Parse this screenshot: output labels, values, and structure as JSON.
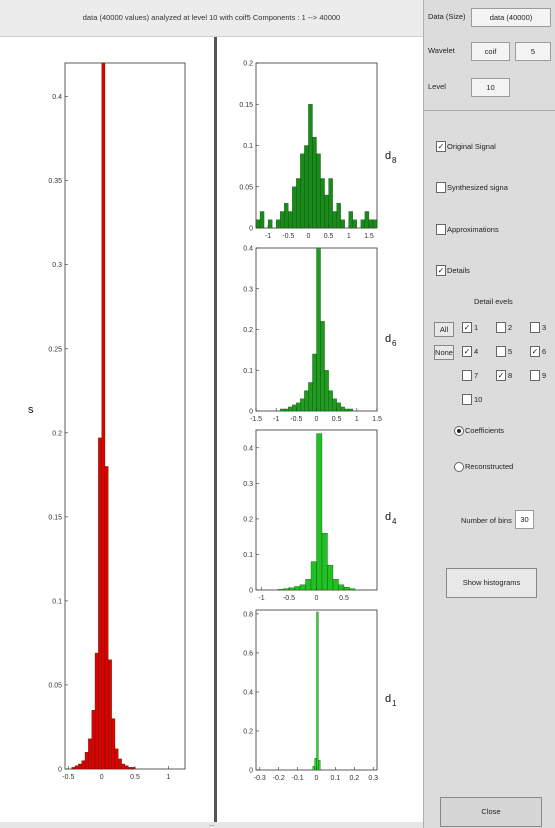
{
  "window": {
    "title": "data (40000 values) analyzed at level 10 with coif5  Components : 1 --> 40000",
    "footer": "...."
  },
  "controls": {
    "data_label": "Data (Size)",
    "data_value": "data (40000)",
    "wavelet_label": "Wavelet",
    "wavelet_family": "coif",
    "wavelet_order": "5",
    "level_label": "Level",
    "level_value": "10",
    "original_signal": "Original Signal",
    "synthesized_signal": "Synthesized signa",
    "approximations": "Approximations",
    "details": "Details",
    "detail_levels_title": "Detail evels",
    "all_button": "All",
    "none_button": "None",
    "levels": [
      {
        "label": "1",
        "checked": true
      },
      {
        "label": "2",
        "checked": false
      },
      {
        "label": "3",
        "checked": false
      },
      {
        "label": "4",
        "checked": true
      },
      {
        "label": "5",
        "checked": false
      },
      {
        "label": "6",
        "checked": true
      },
      {
        "label": "7",
        "checked": false
      },
      {
        "label": "8",
        "checked": true
      },
      {
        "label": "9",
        "checked": false
      },
      {
        "label": "10",
        "checked": false
      }
    ],
    "coefficients": "Coefficients",
    "reconstructed": "Reconstructed",
    "bins_label": "Number of bins",
    "bins_value": "30",
    "show_button": "Show histograms",
    "close_button": "Close",
    "check_mark": "✓"
  },
  "chart_data": [
    {
      "type": "bar",
      "ylabel": "s",
      "color": "#e00000",
      "xlim": [
        -0.55,
        1.25
      ],
      "ylim": [
        0,
        0.42
      ],
      "xticks": [
        "-0.5",
        "0",
        "0.5",
        "1"
      ],
      "yticks": [
        "0",
        "0.05",
        "0.1",
        "0.15",
        "0.2",
        "0.25",
        "0.3",
        "0.35",
        "0.4"
      ],
      "bins_x": [
        -0.45,
        -0.4,
        -0.35,
        -0.3,
        -0.25,
        -0.2,
        -0.15,
        -0.1,
        -0.05,
        0.0,
        0.05,
        0.1,
        0.15,
        0.2,
        0.25,
        0.3,
        0.35,
        0.4,
        0.45,
        0.5
      ],
      "values": [
        0.001,
        0.002,
        0.003,
        0.005,
        0.01,
        0.018,
        0.035,
        0.069,
        0.197,
        0.42,
        0.18,
        0.065,
        0.03,
        0.012,
        0.006,
        0.003,
        0.002,
        0.001,
        0.001,
        0.0
      ],
      "ytick_values": [
        0,
        0.05,
        0.1,
        0.15,
        0.2,
        0.25,
        0.3,
        0.35,
        0.4
      ],
      "xtick_values": [
        -0.5,
        0,
        0.5,
        1
      ]
    },
    {
      "type": "bar",
      "label_main": "d",
      "label_sub": "8",
      "color": "#1a8a1a",
      "xlim": [
        -1.3,
        1.7
      ],
      "ylim": [
        0,
        0.2
      ],
      "xticks": [
        "-1",
        "-0.5",
        "0",
        "0.5",
        "1",
        "1.5"
      ],
      "xtick_values": [
        -1,
        -0.5,
        0,
        0.5,
        1,
        1.5
      ],
      "yticks": [
        "0",
        "0.05",
        "0.1",
        "0.15",
        "0.2"
      ],
      "ytick_values": [
        0,
        0.05,
        0.1,
        0.15,
        0.2
      ],
      "bins_x": [
        -1.3,
        -1.2,
        -1.1,
        -1.0,
        -0.9,
        -0.8,
        -0.7,
        -0.6,
        -0.5,
        -0.4,
        -0.3,
        -0.2,
        -0.1,
        0.0,
        0.1,
        0.2,
        0.3,
        0.4,
        0.5,
        0.6,
        0.7,
        0.8,
        0.9,
        1.0,
        1.1,
        1.2,
        1.3,
        1.4,
        1.5,
        1.6
      ],
      "values": [
        0.01,
        0.02,
        0.0,
        0.01,
        0.0,
        0.01,
        0.02,
        0.03,
        0.02,
        0.05,
        0.06,
        0.09,
        0.1,
        0.15,
        0.11,
        0.09,
        0.06,
        0.04,
        0.06,
        0.02,
        0.03,
        0.01,
        0.0,
        0.02,
        0.01,
        0.0,
        0.01,
        0.02,
        0.01,
        0.01
      ]
    },
    {
      "type": "bar",
      "label_main": "d",
      "label_sub": "6",
      "color": "#209a20",
      "xlim": [
        -1.5,
        1.5
      ],
      "ylim": [
        0,
        0.4
      ],
      "xticks": [
        "-1.5",
        "-1",
        "-0.5",
        "0",
        "0.5",
        "1",
        "1.5"
      ],
      "xtick_values": [
        -1.5,
        -1,
        -0.5,
        0,
        0.5,
        1,
        1.5
      ],
      "yticks": [
        "0",
        "0.1",
        "0.2",
        "0.3",
        "0.4"
      ],
      "ytick_values": [
        0,
        0.1,
        0.2,
        0.3,
        0.4
      ],
      "bins_x": [
        -1.0,
        -0.9,
        -0.8,
        -0.7,
        -0.6,
        -0.5,
        -0.4,
        -0.3,
        -0.2,
        -0.1,
        0.0,
        0.1,
        0.2,
        0.3,
        0.4,
        0.5,
        0.6,
        0.7,
        0.8,
        0.9
      ],
      "values": [
        0.0,
        0.005,
        0.005,
        0.01,
        0.015,
        0.02,
        0.03,
        0.05,
        0.07,
        0.14,
        0.4,
        0.22,
        0.1,
        0.05,
        0.03,
        0.02,
        0.01,
        0.005,
        0.005,
        0.0
      ]
    },
    {
      "type": "bar",
      "label_main": "d",
      "label_sub": "4",
      "color": "#22c022",
      "xlim": [
        -1.1,
        1.1
      ],
      "ylim": [
        0,
        0.45
      ],
      "xticks": [
        "-1",
        "-0.5",
        "0",
        "0.5"
      ],
      "xtick_values": [
        -1,
        -0.5,
        0,
        0.5
      ],
      "yticks": [
        "0",
        "0.1",
        "0.2",
        "0.3",
        "0.4"
      ],
      "ytick_values": [
        0,
        0.1,
        0.2,
        0.3,
        0.4
      ],
      "bins_x": [
        -0.8,
        -0.7,
        -0.6,
        -0.5,
        -0.4,
        -0.3,
        -0.2,
        -0.1,
        0.0,
        0.1,
        0.2,
        0.3,
        0.4,
        0.5,
        0.6
      ],
      "values": [
        0.0,
        0.002,
        0.004,
        0.006,
        0.01,
        0.015,
        0.03,
        0.08,
        0.44,
        0.16,
        0.07,
        0.03,
        0.015,
        0.008,
        0.004
      ]
    },
    {
      "type": "bar",
      "label_main": "d",
      "label_sub": "1",
      "color": "#30d030",
      "xlim": [
        -0.32,
        0.32
      ],
      "ylim": [
        0,
        0.82
      ],
      "xticks": [
        "-0.3",
        "-0.2",
        "-0.1",
        "0",
        "0.1",
        "0.2",
        "0.3"
      ],
      "xtick_values": [
        -0.3,
        -0.2,
        -0.1,
        0,
        0.1,
        0.2,
        0.3
      ],
      "yticks": [
        "0",
        "0.2",
        "0.4",
        "0.6",
        "0.8"
      ],
      "ytick_values": [
        0,
        0.2,
        0.4,
        0.6,
        0.8
      ],
      "bins_x": [
        -0.02,
        -0.01,
        0.0,
        0.01
      ],
      "values": [
        0.02,
        0.06,
        0.81,
        0.05
      ]
    }
  ]
}
